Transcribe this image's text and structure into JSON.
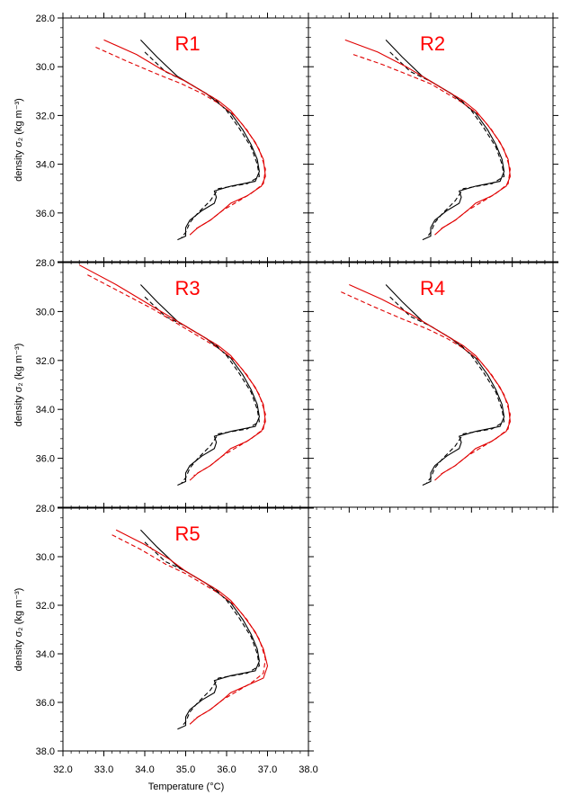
{
  "figure": {
    "x_label": "Temperature (°C)",
    "y_label": "density σ₂ (kg m⁻³)",
    "colors": {
      "observed": "#000000",
      "model": "#e00000",
      "title": "#ff0000"
    }
  },
  "chart_data": [
    {
      "type": "line",
      "title": "R1",
      "xlim": [
        32.0,
        38.0
      ],
      "ylim": [
        38.0,
        28.0
      ],
      "yticks": [
        "28.0",
        "30.0",
        "32.0",
        "34.0",
        "36.0"
      ],
      "series": [
        {
          "style": "solid",
          "color": "#000000",
          "x": [
            33.9,
            34.3,
            34.8,
            35.2,
            35.5,
            35.8,
            36.1,
            36.4,
            36.6,
            36.75,
            36.8,
            36.7,
            36.1,
            35.7,
            35.75,
            35.7,
            35.4,
            35.1,
            35.0,
            35.0,
            34.8
          ],
          "y": [
            28.9,
            29.6,
            30.4,
            30.8,
            31.1,
            31.5,
            31.9,
            32.6,
            33.2,
            33.8,
            34.3,
            34.7,
            34.9,
            35.1,
            35.35,
            35.6,
            35.9,
            36.3,
            36.6,
            36.95,
            37.1
          ]
        },
        {
          "style": "dashed",
          "color": "#000000",
          "x": [
            34.0,
            34.5,
            35.0,
            35.4,
            35.7,
            36.0,
            36.3,
            36.6,
            36.75,
            36.8,
            36.5,
            35.8,
            35.6,
            35.3,
            35.1,
            35.0,
            34.9
          ],
          "y": [
            29.4,
            30.2,
            30.6,
            31.0,
            31.3,
            31.8,
            32.5,
            33.3,
            34.0,
            34.5,
            34.8,
            35.0,
            35.5,
            36.0,
            36.4,
            36.8,
            37.0
          ]
        },
        {
          "style": "solid",
          "color": "#e00000",
          "x": [
            33.0,
            33.8,
            34.4,
            35.0,
            35.4,
            35.8,
            36.1,
            36.4,
            36.7,
            36.9,
            36.95,
            36.85,
            36.5,
            36.1,
            35.9,
            35.6,
            35.3,
            35.1
          ],
          "y": [
            28.9,
            29.5,
            30.1,
            30.6,
            31.0,
            31.4,
            31.8,
            32.4,
            33.1,
            33.8,
            34.5,
            34.9,
            35.3,
            35.6,
            35.9,
            36.3,
            36.6,
            36.9
          ]
        },
        {
          "style": "dashed",
          "color": "#e00000",
          "x": [
            32.8,
            33.6,
            34.3,
            34.9,
            35.4,
            35.8,
            36.2,
            36.5,
            36.8,
            36.95,
            36.9,
            36.6,
            36.2,
            35.9,
            35.6,
            35.2
          ],
          "y": [
            29.2,
            29.8,
            30.3,
            30.7,
            31.1,
            31.5,
            32.0,
            32.6,
            33.4,
            34.2,
            34.8,
            35.2,
            35.6,
            35.9,
            36.3,
            36.7
          ]
        }
      ]
    },
    {
      "type": "line",
      "title": "R2",
      "xlim": [
        32.0,
        38.0
      ],
      "ylim": [
        38.0,
        28.0
      ],
      "yticks": [],
      "series": [
        {
          "style": "solid",
          "color": "#000000",
          "x": [
            33.9,
            34.3,
            34.8,
            35.2,
            35.5,
            35.8,
            36.1,
            36.4,
            36.6,
            36.75,
            36.8,
            36.7,
            36.1,
            35.7,
            35.75,
            35.7,
            35.4,
            35.1,
            35.0,
            35.0,
            34.8
          ],
          "y": [
            28.9,
            29.6,
            30.4,
            30.8,
            31.1,
            31.5,
            31.9,
            32.6,
            33.2,
            33.8,
            34.3,
            34.7,
            34.9,
            35.1,
            35.35,
            35.6,
            35.9,
            36.3,
            36.6,
            36.95,
            37.1
          ]
        },
        {
          "style": "dashed",
          "color": "#000000",
          "x": [
            34.0,
            34.5,
            35.0,
            35.4,
            35.7,
            36.0,
            36.3,
            36.6,
            36.75,
            36.8,
            36.5,
            35.8,
            35.6,
            35.3,
            35.1,
            35.0,
            34.9
          ],
          "y": [
            29.4,
            30.2,
            30.6,
            31.0,
            31.3,
            31.8,
            32.5,
            33.3,
            34.0,
            34.5,
            34.8,
            35.0,
            35.5,
            36.0,
            36.4,
            36.8,
            37.0
          ]
        },
        {
          "style": "solid",
          "color": "#e00000",
          "x": [
            32.9,
            33.7,
            34.4,
            35.0,
            35.4,
            35.8,
            36.1,
            36.4,
            36.7,
            36.9,
            36.95,
            36.85,
            36.5,
            36.1,
            35.9,
            35.6,
            35.3,
            35.1
          ],
          "y": [
            28.9,
            29.4,
            30.0,
            30.6,
            31.0,
            31.4,
            31.8,
            32.4,
            33.1,
            33.8,
            34.5,
            34.9,
            35.3,
            35.6,
            35.9,
            36.3,
            36.6,
            36.9
          ]
        },
        {
          "style": "dashed",
          "color": "#e00000",
          "x": [
            33.1,
            33.8,
            34.4,
            35.0,
            35.4,
            35.8,
            36.2,
            36.5,
            36.8,
            36.95,
            36.9,
            36.6,
            36.2,
            35.9,
            35.6,
            35.2
          ],
          "y": [
            29.5,
            29.9,
            30.3,
            30.7,
            31.1,
            31.5,
            32.0,
            32.6,
            33.4,
            34.2,
            34.8,
            35.2,
            35.6,
            35.9,
            36.3,
            36.7
          ]
        }
      ]
    },
    {
      "type": "line",
      "title": "R3",
      "xlim": [
        32.0,
        38.0
      ],
      "ylim": [
        38.0,
        28.0
      ],
      "yticks": [
        "28.0",
        "30.0",
        "32.0",
        "34.0",
        "36.0"
      ],
      "series": [
        {
          "style": "solid",
          "color": "#000000",
          "x": [
            33.9,
            34.3,
            34.8,
            35.2,
            35.5,
            35.8,
            36.1,
            36.4,
            36.6,
            36.75,
            36.8,
            36.7,
            36.1,
            35.7,
            35.75,
            35.7,
            35.4,
            35.1,
            35.0,
            35.0,
            34.8
          ],
          "y": [
            28.9,
            29.6,
            30.4,
            30.8,
            31.1,
            31.5,
            31.9,
            32.6,
            33.2,
            33.8,
            34.3,
            34.7,
            34.9,
            35.1,
            35.35,
            35.6,
            35.9,
            36.3,
            36.6,
            36.95,
            37.1
          ]
        },
        {
          "style": "dashed",
          "color": "#000000",
          "x": [
            34.0,
            34.5,
            35.0,
            35.4,
            35.7,
            36.0,
            36.3,
            36.6,
            36.75,
            36.8,
            36.5,
            35.8,
            35.6,
            35.3,
            35.1,
            35.0,
            34.9
          ],
          "y": [
            29.4,
            30.2,
            30.6,
            31.0,
            31.3,
            31.8,
            32.5,
            33.3,
            34.0,
            34.5,
            34.8,
            35.0,
            35.5,
            36.0,
            36.4,
            36.8,
            37.0
          ]
        },
        {
          "style": "solid",
          "color": "#e00000",
          "x": [
            32.4,
            33.3,
            34.2,
            34.9,
            35.4,
            35.8,
            36.1,
            36.4,
            36.7,
            36.9,
            36.95,
            36.85,
            36.5,
            36.1,
            35.9,
            35.6,
            35.3,
            35.1
          ],
          "y": [
            28.1,
            28.9,
            29.8,
            30.5,
            31.0,
            31.4,
            31.8,
            32.4,
            33.1,
            33.8,
            34.5,
            34.9,
            35.3,
            35.6,
            35.9,
            36.3,
            36.6,
            36.9
          ]
        },
        {
          "style": "dashed",
          "color": "#e00000",
          "x": [
            32.6,
            33.4,
            34.2,
            34.9,
            35.4,
            35.8,
            36.2,
            36.5,
            36.8,
            36.95,
            36.9,
            36.6,
            36.2,
            35.9,
            35.6,
            35.2
          ],
          "y": [
            28.5,
            29.2,
            29.9,
            30.6,
            31.1,
            31.5,
            32.0,
            32.6,
            33.4,
            34.2,
            34.8,
            35.2,
            35.6,
            35.9,
            36.3,
            36.7
          ]
        }
      ]
    },
    {
      "type": "line",
      "title": "R4",
      "xlim": [
        32.0,
        38.0
      ],
      "ylim": [
        38.0,
        28.0
      ],
      "yticks": [],
      "series": [
        {
          "style": "solid",
          "color": "#000000",
          "x": [
            33.9,
            34.3,
            34.8,
            35.2,
            35.5,
            35.8,
            36.1,
            36.4,
            36.6,
            36.75,
            36.8,
            36.7,
            36.1,
            35.7,
            35.75,
            35.7,
            35.4,
            35.1,
            35.0,
            35.0,
            34.8
          ],
          "y": [
            28.9,
            29.6,
            30.4,
            30.8,
            31.1,
            31.5,
            31.9,
            32.6,
            33.2,
            33.8,
            34.3,
            34.7,
            34.9,
            35.1,
            35.35,
            35.6,
            35.9,
            36.3,
            36.6,
            36.95,
            37.1
          ]
        },
        {
          "style": "dashed",
          "color": "#000000",
          "x": [
            34.0,
            34.5,
            35.0,
            35.4,
            35.7,
            36.0,
            36.3,
            36.6,
            36.75,
            36.8,
            36.5,
            35.8,
            35.6,
            35.3,
            35.1,
            35.0,
            34.9
          ],
          "y": [
            29.4,
            30.2,
            30.6,
            31.0,
            31.3,
            31.8,
            32.5,
            33.3,
            34.0,
            34.5,
            34.8,
            35.0,
            35.5,
            36.0,
            36.4,
            36.8,
            37.0
          ]
        },
        {
          "style": "solid",
          "color": "#e00000",
          "x": [
            33.0,
            33.8,
            34.5,
            35.0,
            35.4,
            35.8,
            36.1,
            36.4,
            36.7,
            36.9,
            36.95,
            36.85,
            36.5,
            36.1,
            35.9,
            35.6,
            35.3,
            35.1
          ],
          "y": [
            28.9,
            29.5,
            30.1,
            30.6,
            31.0,
            31.4,
            31.8,
            32.4,
            33.1,
            33.8,
            34.5,
            34.9,
            35.3,
            35.6,
            35.9,
            36.3,
            36.6,
            36.9
          ]
        },
        {
          "style": "dashed",
          "color": "#e00000",
          "x": [
            32.8,
            33.6,
            34.3,
            34.9,
            35.4,
            35.8,
            36.2,
            36.5,
            36.8,
            36.95,
            36.9,
            36.6,
            36.2,
            35.9,
            35.6,
            35.2
          ],
          "y": [
            29.2,
            29.8,
            30.3,
            30.7,
            31.1,
            31.5,
            32.0,
            32.6,
            33.4,
            34.2,
            34.8,
            35.2,
            35.6,
            35.9,
            36.3,
            36.7
          ]
        }
      ]
    },
    {
      "type": "line",
      "title": "R5",
      "xlim": [
        32.0,
        38.0
      ],
      "ylim": [
        38.0,
        28.0
      ],
      "yticks": [
        "28.0",
        "30.0",
        "32.0",
        "34.0",
        "36.0",
        "38.0"
      ],
      "xticks": [
        "32.0",
        "33.0",
        "34.0",
        "35.0",
        "36.0",
        "37.0",
        "38.0"
      ],
      "series": [
        {
          "style": "solid",
          "color": "#000000",
          "x": [
            33.9,
            34.3,
            34.8,
            35.2,
            35.5,
            35.8,
            36.1,
            36.4,
            36.6,
            36.75,
            36.8,
            36.7,
            36.1,
            35.7,
            35.75,
            35.7,
            35.4,
            35.1,
            35.0,
            35.0,
            34.8
          ],
          "y": [
            28.9,
            29.6,
            30.4,
            30.8,
            31.1,
            31.5,
            31.9,
            32.6,
            33.2,
            33.8,
            34.3,
            34.7,
            34.9,
            35.1,
            35.35,
            35.6,
            35.9,
            36.3,
            36.6,
            36.95,
            37.1
          ]
        },
        {
          "style": "dashed",
          "color": "#000000",
          "x": [
            34.0,
            34.5,
            35.0,
            35.4,
            35.7,
            36.0,
            36.3,
            36.6,
            36.75,
            36.8,
            36.5,
            35.8,
            35.6,
            35.3,
            35.1,
            35.0,
            34.9
          ],
          "y": [
            29.4,
            30.2,
            30.6,
            31.0,
            31.3,
            31.8,
            32.5,
            33.3,
            34.0,
            34.5,
            34.8,
            35.0,
            35.5,
            36.0,
            36.4,
            36.8,
            37.0
          ]
        },
        {
          "style": "solid",
          "color": "#e00000",
          "x": [
            33.3,
            34.0,
            34.6,
            35.0,
            35.4,
            35.8,
            36.1,
            36.4,
            36.7,
            36.9,
            37.0,
            36.9,
            36.5,
            36.1,
            35.9,
            35.6,
            35.3,
            35.1
          ],
          "y": [
            28.9,
            29.5,
            30.1,
            30.6,
            31.0,
            31.4,
            31.8,
            32.4,
            33.1,
            33.8,
            34.5,
            35.0,
            35.3,
            35.6,
            35.9,
            36.3,
            36.6,
            36.9
          ]
        },
        {
          "style": "dashed",
          "color": "#e00000",
          "x": [
            33.2,
            33.9,
            34.5,
            35.0,
            35.4,
            35.8,
            36.2,
            36.5,
            36.8,
            36.95,
            36.9,
            36.6,
            36.2,
            35.9,
            35.6,
            35.2
          ],
          "y": [
            29.1,
            29.7,
            30.3,
            30.7,
            31.1,
            31.5,
            32.0,
            32.6,
            33.4,
            34.2,
            34.8,
            35.2,
            35.6,
            35.9,
            36.3,
            36.7
          ]
        }
      ]
    }
  ]
}
